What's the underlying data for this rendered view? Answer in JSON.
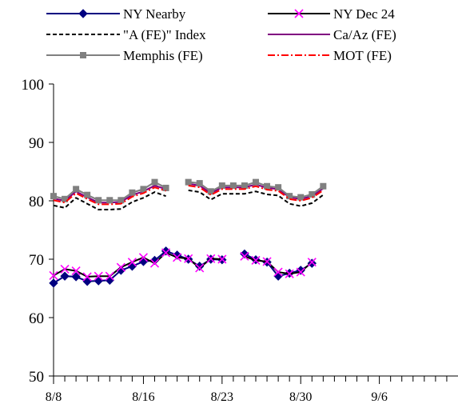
{
  "chart_data": {
    "type": "line",
    "title": "",
    "xlabel": "",
    "ylabel": "",
    "ylim": [
      50,
      100
    ],
    "yticks": [
      50,
      60,
      70,
      80,
      90,
      100
    ],
    "xlim": [
      "8/8",
      "9/13"
    ],
    "x_tick_labels": [
      {
        "date": "8/8",
        "label": "8/8"
      },
      {
        "date": "8/16",
        "label": "8/16"
      },
      {
        "date": "8/23",
        "label": "8/23"
      },
      {
        "date": "8/30",
        "label": "8/30"
      },
      {
        "date": "9/6",
        "label": "9/6"
      }
    ],
    "minor_tick_dates": [
      "8/9",
      "8/10",
      "8/11",
      "8/12",
      "8/13",
      "8/14",
      "8/15",
      "8/17",
      "8/18",
      "8/19",
      "8/20",
      "8/21",
      "8/22",
      "8/24",
      "8/25",
      "8/26",
      "8/27",
      "8/28",
      "8/29",
      "8/31",
      "9/1",
      "9/2",
      "9/3",
      "9/4",
      "9/5",
      "9/7",
      "9/8",
      "9/9",
      "9/10",
      "9/11",
      "9/12"
    ],
    "grid": false,
    "legend_position": "top",
    "x": [
      "8/8",
      "8/9",
      "8/10",
      "8/11",
      "8/12",
      "8/13",
      "8/14",
      "8/15",
      "8/16",
      "8/17",
      "8/18",
      "8/19",
      "8/20",
      "8/21",
      "8/22",
      "8/23",
      "8/24",
      "8/25",
      "8/26",
      "8/27",
      "8/28",
      "8/29",
      "8/30",
      "8/31",
      "9/1",
      "9/2",
      "9/3",
      "9/4",
      "9/5",
      "9/6",
      "9/7",
      "9/8",
      "9/9",
      "9/10",
      "9/11",
      "9/12",
      "9/13"
    ],
    "series": [
      {
        "name": "NY Nearby",
        "color": "#000080",
        "line": "solid",
        "marker": "diamond",
        "values": [
          65.9,
          67.1,
          67.0,
          66.2,
          66.3,
          66.4,
          68.1,
          68.8,
          69.6,
          69.8,
          71.4,
          70.7,
          70.0,
          68.8,
          70.0,
          69.9,
          null,
          70.9,
          69.9,
          69.5,
          67.1,
          67.6,
          68.1,
          69.3,
          null,
          null,
          null,
          null,
          null,
          null,
          null,
          null,
          null,
          null,
          null,
          null,
          null
        ]
      },
      {
        "name": "NY Dec 24",
        "color": "#000000",
        "line": "solid",
        "marker": "x",
        "marker_color": "#ff00ff",
        "values": [
          67.2,
          68.3,
          68.0,
          67.0,
          67.1,
          67.1,
          68.6,
          69.5,
          70.3,
          69.3,
          71.1,
          70.3,
          70.1,
          68.5,
          70.1,
          70.0,
          null,
          70.5,
          69.8,
          69.6,
          67.8,
          67.5,
          67.8,
          69.5,
          null,
          null,
          null,
          null,
          null,
          null,
          null,
          null,
          null,
          null,
          null,
          null,
          null
        ]
      },
      {
        "name": "\"A (FE)\" Index",
        "color": "#000000",
        "line": "dashed",
        "marker": "none",
        "values": [
          79.2,
          78.8,
          80.5,
          79.5,
          78.5,
          78.5,
          78.6,
          79.8,
          80.5,
          81.5,
          80.8,
          null,
          81.8,
          81.5,
          80.2,
          81.2,
          81.2,
          81.2,
          81.6,
          81.1,
          80.9,
          79.5,
          79.1,
          79.6,
          81.0,
          null,
          null,
          null,
          null,
          null,
          null,
          null,
          null,
          null,
          null,
          null,
          null
        ]
      },
      {
        "name": "Ca/Az (FE)",
        "color": "#800080",
        "line": "solid",
        "marker": "none",
        "values": [
          80.4,
          80.0,
          81.6,
          80.6,
          79.7,
          79.7,
          79.8,
          81.0,
          81.6,
          82.6,
          82.0,
          null,
          82.9,
          82.6,
          81.3,
          82.3,
          82.3,
          82.3,
          82.8,
          82.2,
          82.0,
          80.6,
          80.3,
          80.8,
          82.1,
          null,
          null,
          null,
          null,
          null,
          null,
          null,
          null,
          null,
          null,
          null,
          null
        ]
      },
      {
        "name": "Memphis (FE)",
        "color": "#808080",
        "line": "solid",
        "marker": "square",
        "values": [
          80.8,
          80.3,
          82.0,
          81.0,
          80.1,
          80.1,
          80.1,
          81.4,
          82.0,
          83.2,
          82.2,
          null,
          83.2,
          83.0,
          81.6,
          82.6,
          82.6,
          82.6,
          83.2,
          82.5,
          82.3,
          80.8,
          80.6,
          81.1,
          82.5,
          null,
          null,
          null,
          null,
          null,
          null,
          null,
          null,
          null,
          null,
          null,
          null
        ]
      },
      {
        "name": "MOT (FE)",
        "color": "#ff0000",
        "line": "dashdot",
        "marker": "none",
        "values": [
          80.1,
          79.7,
          81.3,
          80.3,
          79.4,
          79.4,
          79.5,
          80.7,
          81.3,
          82.3,
          81.7,
          null,
          82.6,
          82.3,
          81.0,
          82.0,
          82.0,
          82.0,
          82.5,
          81.9,
          81.7,
          80.3,
          80.0,
          80.5,
          81.8,
          null,
          null,
          null,
          null,
          null,
          null,
          null,
          null,
          null,
          null,
          null,
          null
        ]
      }
    ]
  }
}
